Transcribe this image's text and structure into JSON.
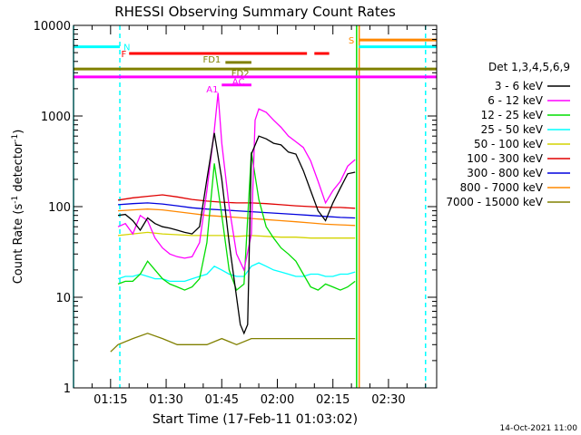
{
  "chart_data": {
    "type": "line",
    "title": "RHESSI Observing Summary Count Rates",
    "xlabel": "Start Time (17-Feb-11 01:03:02)",
    "ylabel_main": "Count Rate (s",
    "ylabel_sup": "-1",
    "ylabel_mid": " detector",
    "ylabel_sup2": "-1",
    "ylabel_end": ")",
    "yscale": "log",
    "ylim": [
      1,
      10000
    ],
    "xlim": [
      5,
      103
    ],
    "yticks": [
      {
        "v": 1,
        "label": "1"
      },
      {
        "v": 10,
        "label": "10"
      },
      {
        "v": 100,
        "label": "100"
      },
      {
        "v": 1000,
        "label": "1000"
      },
      {
        "v": 10000,
        "label": "10000"
      }
    ],
    "xticks": [
      {
        "v": 15,
        "label": "01:15"
      },
      {
        "v": 30,
        "label": "01:30"
      },
      {
        "v": 45,
        "label": "01:45"
      },
      {
        "v": 60,
        "label": "02:00"
      },
      {
        "v": 75,
        "label": "02:15"
      },
      {
        "v": 90,
        "label": "02:30"
      }
    ],
    "legend_title": "Det 1,3,4,5,6,9",
    "legend_position": "right",
    "footer": "14-Oct-2021 11:00",
    "series": [
      {
        "name": "3 - 6 keV",
        "color": "#000000",
        "x": [
          17,
          19,
          21,
          23,
          25,
          27,
          29,
          31,
          33,
          35,
          37,
          39,
          41,
          43,
          45,
          47,
          48,
          49,
          50,
          51,
          52,
          53,
          55,
          57,
          59,
          61,
          63,
          65,
          67,
          69,
          71,
          73,
          75,
          77,
          79,
          81
        ],
        "y": [
          80,
          82,
          70,
          55,
          75,
          65,
          60,
          58,
          55,
          52,
          50,
          60,
          200,
          650,
          200,
          40,
          20,
          10,
          5,
          4,
          5,
          380,
          600,
          560,
          500,
          480,
          400,
          380,
          250,
          150,
          90,
          70,
          110,
          160,
          230,
          240
        ]
      },
      {
        "name": "6 - 12 keV",
        "color": "#ff00ff",
        "x": [
          17,
          19,
          21,
          23,
          25,
          27,
          29,
          31,
          33,
          35,
          37,
          39,
          41,
          43,
          44,
          45,
          47,
          49,
          51,
          53,
          54,
          55,
          57,
          59,
          61,
          63,
          65,
          67,
          69,
          71,
          73,
          75,
          77,
          79,
          81
        ],
        "y": [
          60,
          65,
          50,
          80,
          70,
          45,
          35,
          30,
          28,
          27,
          28,
          40,
          150,
          700,
          1800,
          500,
          100,
          30,
          20,
          50,
          900,
          1200,
          1100,
          900,
          750,
          600,
          520,
          450,
          320,
          190,
          110,
          150,
          190,
          280,
          330
        ]
      },
      {
        "name": "12 - 25 keV",
        "color": "#00dd00",
        "x": [
          17,
          19,
          21,
          23,
          25,
          27,
          29,
          31,
          33,
          35,
          37,
          39,
          41,
          43,
          45,
          47,
          49,
          51,
          53,
          55,
          57,
          59,
          61,
          63,
          65,
          67,
          69,
          71,
          73,
          75,
          77,
          79,
          81
        ],
        "y": [
          14,
          15,
          15,
          18,
          25,
          20,
          16,
          14,
          13,
          12,
          13,
          16,
          40,
          300,
          80,
          20,
          12,
          14,
          400,
          120,
          60,
          45,
          35,
          30,
          25,
          18,
          13,
          12,
          14,
          13,
          12,
          13,
          15
        ]
      },
      {
        "name": "25 - 50 keV",
        "color": "#00ffff",
        "x": [
          17,
          19,
          21,
          23,
          25,
          27,
          29,
          31,
          33,
          35,
          37,
          39,
          41,
          43,
          45,
          47,
          49,
          51,
          53,
          55,
          57,
          59,
          61,
          63,
          65,
          67,
          69,
          71,
          73,
          75,
          77,
          79,
          81
        ],
        "y": [
          16,
          17,
          17,
          18,
          17,
          16,
          16,
          15,
          15,
          15,
          16,
          17,
          18,
          22,
          20,
          18,
          17,
          17,
          22,
          24,
          22,
          20,
          19,
          18,
          17,
          17,
          18,
          18,
          17,
          17,
          18,
          18,
          19
        ]
      },
      {
        "name": "50 - 100 keV",
        "color": "#d4d400",
        "x": [
          17,
          21,
          25,
          29,
          33,
          37,
          41,
          45,
          49,
          53,
          57,
          61,
          65,
          69,
          73,
          77,
          81
        ],
        "y": [
          48,
          50,
          52,
          50,
          49,
          48,
          48,
          48,
          47,
          48,
          47,
          46,
          46,
          45,
          45,
          45,
          45
        ]
      },
      {
        "name": "100 - 300 keV",
        "color": "#e00000",
        "x": [
          17,
          21,
          25,
          29,
          33,
          37,
          41,
          45,
          49,
          53,
          57,
          61,
          65,
          69,
          73,
          77,
          81
        ],
        "y": [
          118,
          125,
          130,
          135,
          128,
          120,
          115,
          112,
          110,
          110,
          108,
          105,
          102,
          100,
          98,
          98,
          96
        ]
      },
      {
        "name": "300 - 800 keV",
        "color": "#0000dd",
        "x": [
          17,
          21,
          25,
          29,
          33,
          37,
          41,
          45,
          49,
          53,
          57,
          61,
          65,
          69,
          73,
          77,
          81
        ],
        "y": [
          105,
          108,
          110,
          107,
          102,
          97,
          94,
          92,
          90,
          88,
          86,
          84,
          82,
          80,
          78,
          76,
          75
        ]
      },
      {
        "name": "800 - 7000 keV",
        "color": "#ff8800",
        "x": [
          17,
          21,
          25,
          29,
          33,
          37,
          41,
          45,
          49,
          53,
          57,
          61,
          65,
          69,
          73,
          77,
          81
        ],
        "y": [
          90,
          92,
          94,
          92,
          88,
          84,
          80,
          78,
          76,
          74,
          72,
          70,
          68,
          66,
          64,
          63,
          62
        ]
      },
      {
        "name": "7000 - 15000 keV",
        "color": "#808000",
        "x": [
          15,
          17,
          21,
          25,
          29,
          33,
          37,
          41,
          45,
          49,
          53,
          57,
          61,
          65,
          69,
          73,
          77,
          81
        ],
        "y": [
          2.5,
          3,
          3.5,
          4,
          3.5,
          3,
          3,
          3,
          3.5,
          3,
          3.5,
          3.5,
          3.5,
          3.5,
          3.5,
          3.5,
          3.5,
          3.5
        ]
      }
    ],
    "flags": [
      {
        "label": "N",
        "color": "#00ffff",
        "y": 5800,
        "x0": 5,
        "x1": 17.5,
        "label_x": 17.5,
        "label_side": "right",
        "label_y": 5800
      },
      {
        "label": "F",
        "color": "#ff0000",
        "y": 4900,
        "x0": 20,
        "x1": 68,
        "label_x": 20,
        "label_side": "left",
        "label_y": 4900
      },
      {
        "label": "",
        "color": "#ff0000",
        "y": 4900,
        "x0": 70,
        "x1": 74,
        "label_x": 70,
        "label_side": "none",
        "label_y": 4900
      },
      {
        "label": "FD1",
        "color": "#808000",
        "y": 3900,
        "x0": 46,
        "x1": 53,
        "label_x": 45.5,
        "label_side": "left",
        "label_y": 4250
      },
      {
        "label": "FD2",
        "color": "#808000",
        "y": 3300,
        "x0": 5,
        "x1": 103,
        "label_x": 50,
        "label_side": "center",
        "label_y": 3000
      },
      {
        "label": "AC",
        "color": "#ff00ff",
        "y": 2700,
        "x0": 5,
        "x1": 103,
        "label_x": 49.5,
        "label_side": "center",
        "label_y": 2420
      },
      {
        "label": "A1",
        "color": "#ff00ff",
        "y": 2200,
        "x0": 45,
        "x1": 53,
        "label_x": 44.8,
        "label_side": "left",
        "label_y": 2000
      },
      {
        "label": "S",
        "color": "#ff8800",
        "y": 6900,
        "x0": 82,
        "x1": 103,
        "label_x": 81.5,
        "label_side": "left",
        "label_y": 6900
      },
      {
        "label": "",
        "color": "#00ffff",
        "y": 5800,
        "x0": 82,
        "x1": 103,
        "label_x": 82,
        "label_side": "none",
        "label_y": 5800
      }
    ],
    "vlines": [
      {
        "x": 5,
        "color": "#00ffff",
        "dashed": false
      },
      {
        "x": 17.5,
        "color": "#00ffff",
        "dashed": true
      },
      {
        "x": 81.4,
        "color": "#00dd00",
        "dashed": false
      },
      {
        "x": 82.1,
        "color": "#ff8800",
        "dashed": false
      },
      {
        "x": 100,
        "color": "#00ffff",
        "dashed": true
      }
    ]
  }
}
